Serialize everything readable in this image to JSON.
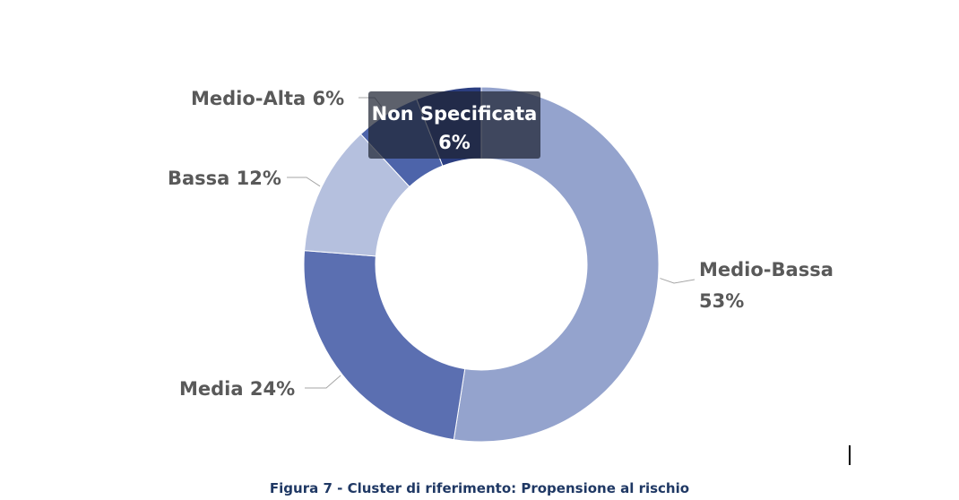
{
  "caption": "Figura 7 - Cluster di riferimento: Propensione al rischio",
  "chart_data": {
    "type": "pie",
    "donut": true,
    "title": "",
    "slices": [
      {
        "name": "Medio-Bassa",
        "value": 53,
        "label": "Medio-Bassa 53%",
        "color": "#94a3cd"
      },
      {
        "name": "Media",
        "value": 24,
        "label": "Media 24%",
        "color": "#5b6fb1"
      },
      {
        "name": "Bassa",
        "value": 12,
        "label": "Bassa 12%",
        "color": "#b5c0de"
      },
      {
        "name": "Medio-Alta",
        "value": 6,
        "label": "Medio-Alta 6%",
        "color": "#4d64aa"
      },
      {
        "name": "Non Specificata",
        "value": 6,
        "label": "Non Specificata 6%",
        "color": "#2b3e80"
      }
    ],
    "label_lines": {
      "Medio-Bassa": [
        "Medio-Bassa",
        "53%"
      ],
      "Media": [
        "Media 24%"
      ],
      "Bassa": [
        "Bassa 12%"
      ],
      "Medio-Alta": [
        "Medio-Alta 6%"
      ]
    },
    "tooltip": {
      "lines": [
        "Non Specificata",
        "6%"
      ]
    }
  }
}
